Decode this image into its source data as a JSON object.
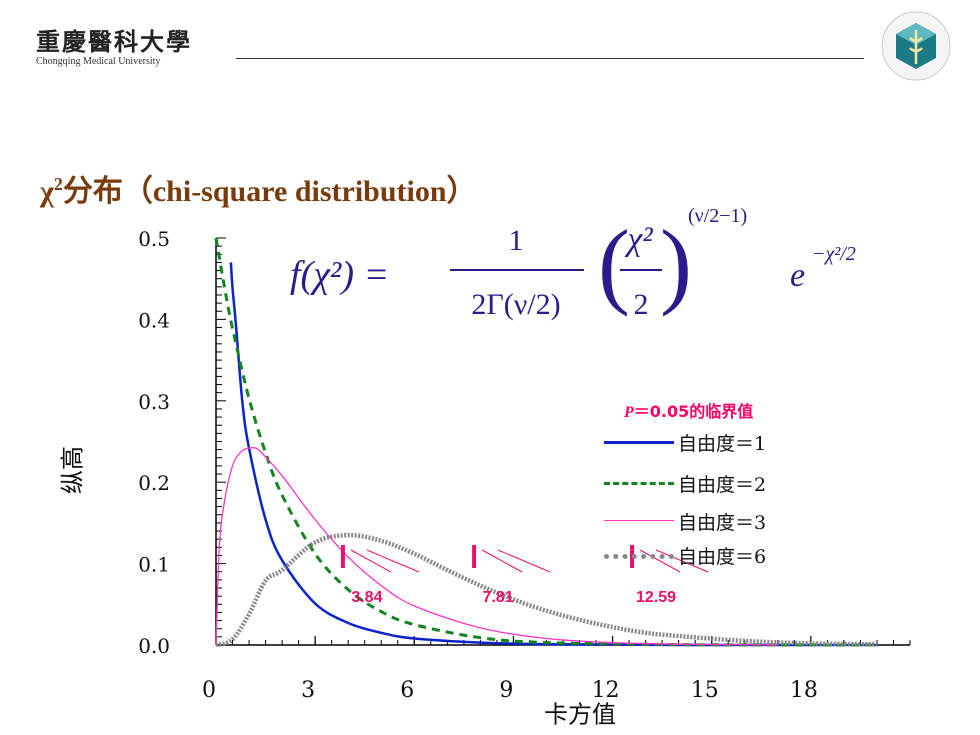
{
  "header": {
    "university_cn": "重慶醫科大學",
    "university_en": "Chongqing Medical University"
  },
  "slide": {
    "title_prefix": "χ",
    "title_sup": "2",
    "title_rest": "分布（chi-square distribution）"
  },
  "formula": {
    "lhs": "f(χ²) =",
    "numerator": "1",
    "denominator": "2Γ(ν/2)",
    "frac_num": "χ²",
    "frac_den": "2",
    "power": "(ν/2−1)",
    "exp_base": "e",
    "exp_power": "−χ²/2"
  },
  "colors": {
    "df1": "#0b24c8",
    "df2": "#12851f",
    "df3": "#ff33cc",
    "df6": "#888888",
    "critical": "#e8106a",
    "formula": "#2a1a8c"
  },
  "chart_data": {
    "type": "line",
    "xlabel": "卡方值",
    "ylabel": "纵高",
    "xlim": [
      0,
      21
    ],
    "ylim": [
      0,
      0.5
    ],
    "x_ticks": [
      "0",
      "3",
      "6",
      "9",
      "12",
      "15",
      "18"
    ],
    "y_ticks": [
      "0.0",
      "0.1",
      "0.2",
      "0.3",
      "0.4",
      "0.5"
    ],
    "legend_title_italic": "P",
    "legend_title_rest": "＝0.05的临界值",
    "legend_position": "right",
    "series": [
      {
        "name": "自由度＝1",
        "df": 1,
        "style": "solid",
        "x": [
          0.45,
          0.5,
          0.6,
          0.8,
          1.0,
          1.5,
          2.0,
          3.0,
          4.0,
          5.0,
          6.0,
          8.0,
          10.0,
          14.0,
          20.0
        ],
        "y": [
          0.47,
          0.439,
          0.395,
          0.298,
          0.242,
          0.154,
          0.104,
          0.051,
          0.027,
          0.015,
          0.008,
          0.003,
          0.001,
          0.0,
          0.0
        ]
      },
      {
        "name": "自由度＝2",
        "df": 2,
        "style": "dashed",
        "x": [
          0.0,
          0.25,
          0.5,
          1.0,
          1.5,
          2.0,
          3.0,
          4.0,
          5.0,
          6.0,
          8.0,
          10.0,
          14.0,
          20.0
        ],
        "y": [
          0.5,
          0.441,
          0.389,
          0.303,
          0.236,
          0.184,
          0.112,
          0.068,
          0.041,
          0.025,
          0.009,
          0.003,
          0.0005,
          0.0
        ]
      },
      {
        "name": "自由度＝3",
        "df": 3,
        "style": "solid-thin",
        "x": [
          0.0,
          0.1,
          0.25,
          0.5,
          0.75,
          1.0,
          1.25,
          1.5,
          2.0,
          3.0,
          4.0,
          5.0,
          6.0,
          8.0,
          10.0,
          12.0,
          14.0,
          17.0
        ],
        "y": [
          0.0,
          0.12,
          0.175,
          0.22,
          0.237,
          0.242,
          0.241,
          0.231,
          0.208,
          0.154,
          0.108,
          0.073,
          0.048,
          0.021,
          0.008,
          0.003,
          0.001,
          0.0
        ]
      },
      {
        "name": "自由度＝6",
        "df": 6,
        "style": "thick-grey",
        "x": [
          0.0,
          0.5,
          1.0,
          1.5,
          2.0,
          3.0,
          4.0,
          5.0,
          6.0,
          7.0,
          8.0,
          9.0,
          10.0,
          11.0,
          12.0,
          13.0,
          14.0,
          16.0,
          18.0,
          20.0
        ],
        "y": [
          0.0,
          0.007,
          0.038,
          0.079,
          0.092,
          0.126,
          0.135,
          0.128,
          0.112,
          0.092,
          0.073,
          0.056,
          0.042,
          0.031,
          0.022,
          0.015,
          0.011,
          0.005,
          0.002,
          0.001
        ]
      }
    ],
    "critical_values": [
      {
        "x": 3.84,
        "label": "3.84",
        "df": 1
      },
      {
        "x": 7.81,
        "label": "7.81",
        "df": 3
      },
      {
        "x": 12.59,
        "label": "12.59",
        "df": 6
      }
    ]
  }
}
